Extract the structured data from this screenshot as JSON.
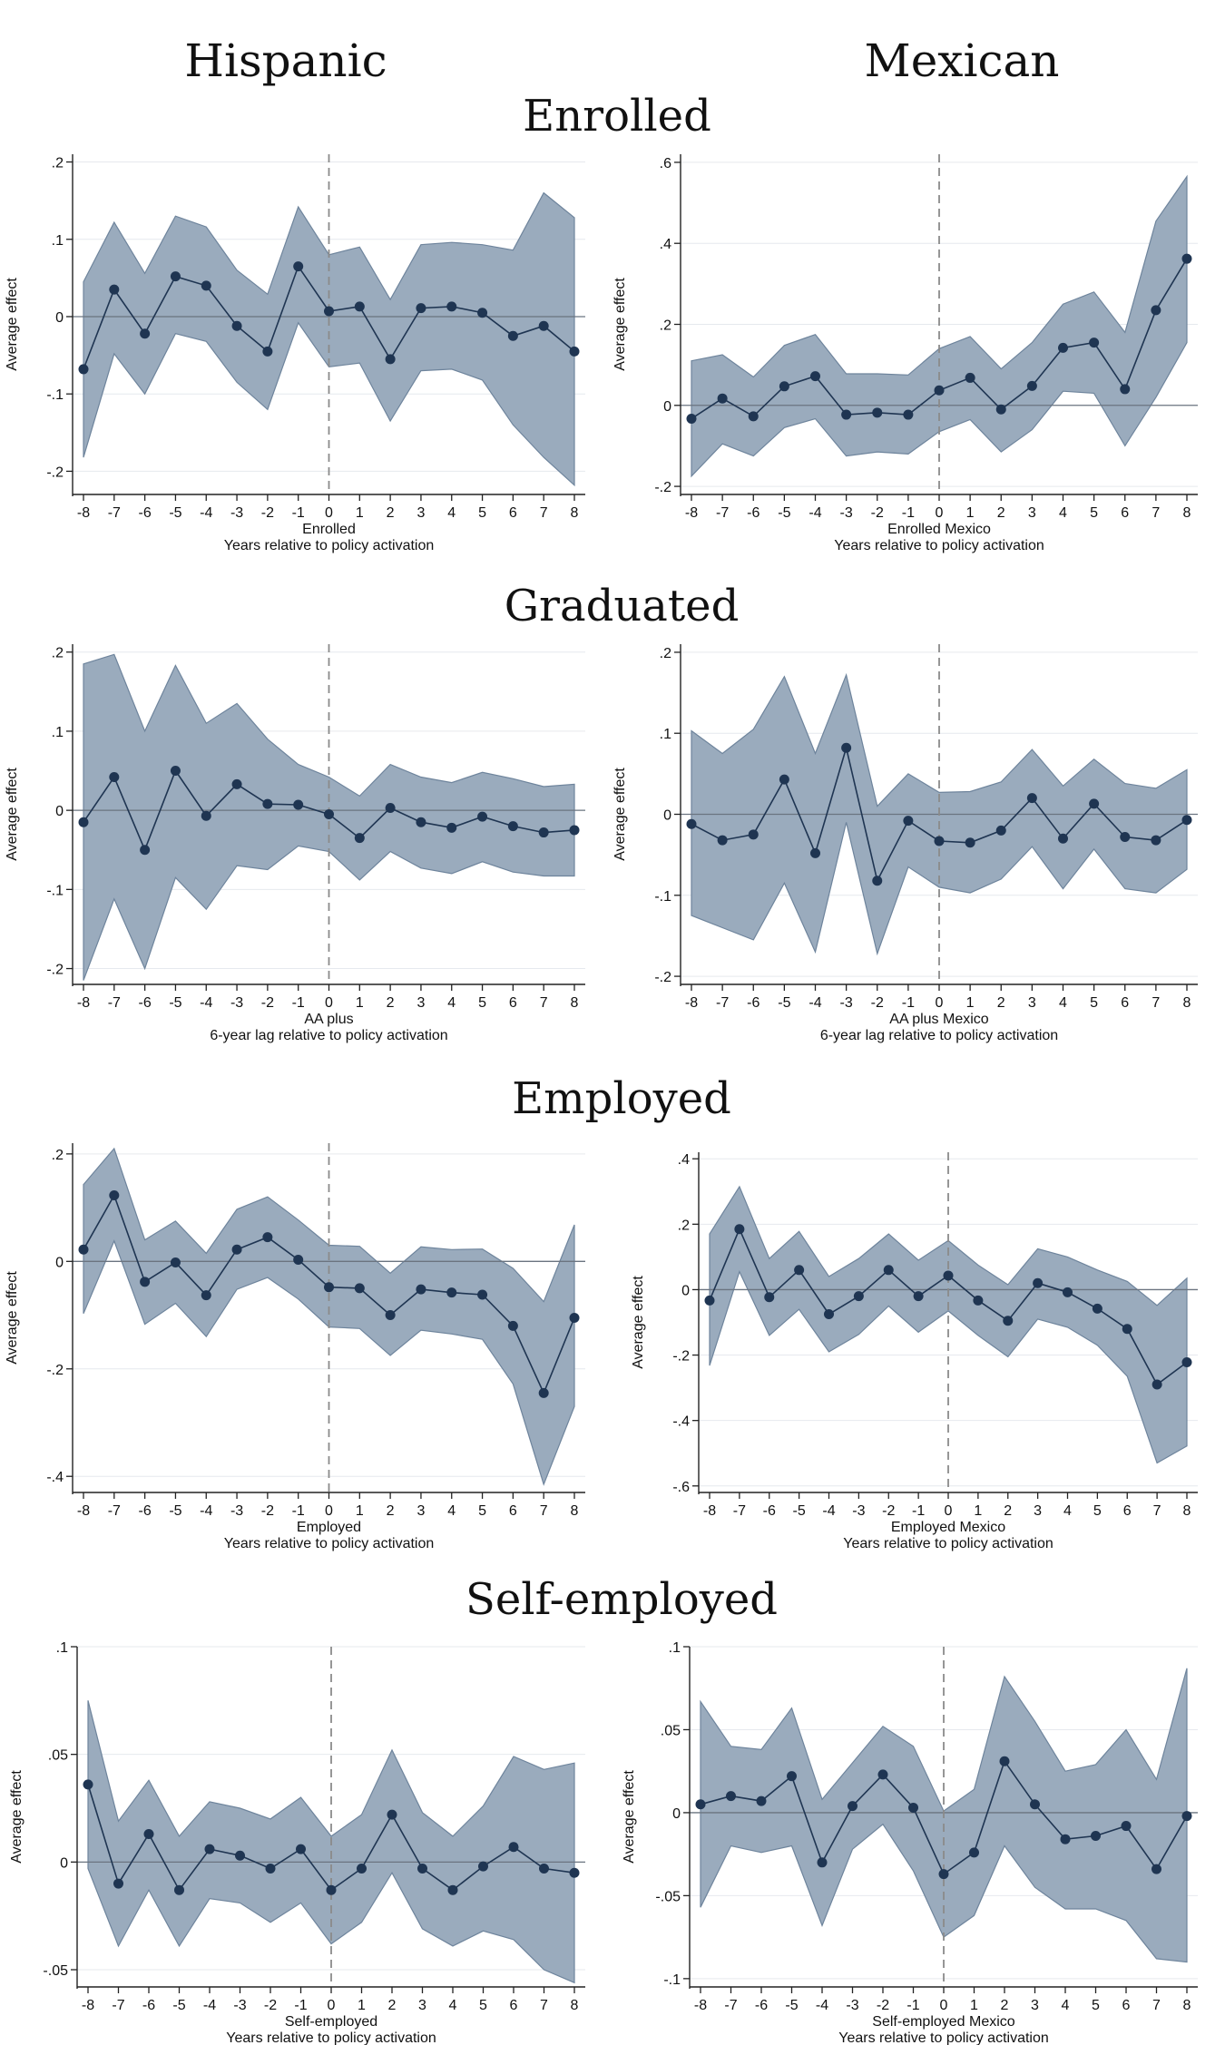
{
  "column_titles": [
    "Hispanic",
    "Mexican"
  ],
  "row_titles": [
    "Enrolled",
    "Graduated",
    "Employed",
    "Self-employed"
  ],
  "colors": {
    "band": "#9aabbd",
    "band_edge": "#6e849c",
    "line": "#1f3552",
    "marker": "#1f3552",
    "zero_line": "#6b7480",
    "vline": "#8a8a8a",
    "axis": "#222222"
  },
  "chart_data": [
    {
      "id": "enrolled-hispanic",
      "type": "line",
      "title": "",
      "xlabel": "Enrolled",
      "xlabel2": "Years relative to policy activation",
      "ylabel": "Average effect",
      "x": [
        -8,
        -7,
        -6,
        -5,
        -4,
        -3,
        -2,
        -1,
        0,
        1,
        2,
        3,
        4,
        5,
        6,
        7,
        8
      ],
      "xtick_labels": [
        "-8",
        "-7",
        "-6",
        "-5",
        "-4",
        "-3",
        "-2",
        "-1",
        "0",
        "1",
        "2",
        "3",
        "4",
        "5",
        "6",
        "7",
        "8"
      ],
      "ylim": [
        -0.23,
        0.21
      ],
      "yticks": [
        -0.2,
        -0.1,
        0,
        0.1,
        0.2
      ],
      "ytick_labels": [
        "-.2",
        "-.1",
        "0",
        ".1",
        ".2"
      ],
      "series": [
        {
          "name": "Average effect",
          "values": [
            -0.068,
            0.035,
            -0.022,
            0.052,
            0.04,
            -0.012,
            -0.045,
            0.065,
            0.007,
            0.013,
            -0.055,
            0.011,
            0.013,
            0.005,
            -0.025,
            -0.012,
            -0.045
          ],
          "lower": [
            -0.182,
            -0.048,
            -0.1,
            -0.022,
            -0.032,
            -0.085,
            -0.12,
            -0.008,
            -0.065,
            -0.06,
            -0.135,
            -0.07,
            -0.068,
            -0.082,
            -0.14,
            -0.182,
            -0.218
          ],
          "upper": [
            0.045,
            0.122,
            0.056,
            0.13,
            0.116,
            0.06,
            0.029,
            0.142,
            0.08,
            0.09,
            0.022,
            0.093,
            0.096,
            0.093,
            0.086,
            0.16,
            0.128
          ]
        }
      ]
    },
    {
      "id": "enrolled-mexican",
      "type": "line",
      "title": "",
      "xlabel": "Enrolled Mexico",
      "xlabel2": "Years relative to policy activation",
      "ylabel": "Average effect",
      "x": [
        -8,
        -7,
        -6,
        -5,
        -4,
        -3,
        -2,
        -1,
        0,
        1,
        2,
        3,
        4,
        5,
        6,
        7,
        8
      ],
      "xtick_labels": [
        "-8",
        "-7",
        "-6",
        "-5",
        "-4",
        "-3",
        "-2",
        "-1",
        "0",
        "1",
        "2",
        "3",
        "4",
        "5",
        "6",
        "7",
        "8"
      ],
      "ylim": [
        -0.22,
        0.62
      ],
      "yticks": [
        -0.2,
        0,
        0.2,
        0.4,
        0.6
      ],
      "ytick_labels": [
        "-.2",
        "0",
        ".2",
        ".4",
        ".6"
      ],
      "series": [
        {
          "name": "Average effect",
          "values": [
            -0.033,
            0.017,
            -0.027,
            0.047,
            0.072,
            -0.023,
            -0.018,
            -0.023,
            0.037,
            0.068,
            -0.01,
            0.048,
            0.142,
            0.155,
            0.04,
            0.235,
            0.362
          ],
          "lower": [
            -0.175,
            -0.095,
            -0.125,
            -0.055,
            -0.033,
            -0.125,
            -0.115,
            -0.12,
            -0.065,
            -0.035,
            -0.115,
            -0.06,
            0.035,
            0.03,
            -0.1,
            0.02,
            0.155
          ],
          "upper": [
            0.11,
            0.125,
            0.07,
            0.148,
            0.175,
            0.078,
            0.078,
            0.075,
            0.14,
            0.17,
            0.09,
            0.155,
            0.25,
            0.28,
            0.18,
            0.455,
            0.565
          ]
        }
      ]
    },
    {
      "id": "graduated-hispanic",
      "type": "line",
      "title": "",
      "xlabel": "AA plus",
      "xlabel2": "6-year lag relative to policy activation",
      "ylabel": "Average effect",
      "x": [
        -8,
        -7,
        -6,
        -5,
        -4,
        -3,
        -2,
        -1,
        0,
        1,
        2,
        3,
        4,
        5,
        6,
        7,
        8
      ],
      "xtick_labels": [
        "-8",
        "-7",
        "-6",
        "-5",
        "-4",
        "-3",
        "-2",
        "-1",
        "0",
        "1",
        "2",
        "3",
        "4",
        "5",
        "6",
        "7",
        "8"
      ],
      "ylim": [
        -0.22,
        0.21
      ],
      "yticks": [
        -0.2,
        -0.1,
        0,
        0.1,
        0.2
      ],
      "ytick_labels": [
        "-.2",
        "-.1",
        "0",
        ".1",
        ".2"
      ],
      "series": [
        {
          "name": "Average effect",
          "values": [
            -0.015,
            0.042,
            -0.05,
            0.05,
            -0.007,
            0.033,
            0.008,
            0.007,
            -0.005,
            -0.035,
            0.003,
            -0.015,
            -0.022,
            -0.008,
            -0.02,
            -0.028,
            -0.025
          ],
          "lower": [
            -0.215,
            -0.112,
            -0.2,
            -0.085,
            -0.125,
            -0.07,
            -0.075,
            -0.045,
            -0.052,
            -0.088,
            -0.052,
            -0.073,
            -0.08,
            -0.065,
            -0.078,
            -0.083,
            -0.083
          ],
          "upper": [
            0.185,
            0.197,
            0.1,
            0.183,
            0.11,
            0.135,
            0.09,
            0.058,
            0.042,
            0.018,
            0.058,
            0.042,
            0.035,
            0.048,
            0.04,
            0.03,
            0.033
          ]
        }
      ]
    },
    {
      "id": "graduated-mexican",
      "type": "line",
      "title": "",
      "xlabel": "AA plus Mexico",
      "xlabel2": "6-year lag relative to policy activation",
      "ylabel": "Average effect",
      "x": [
        -8,
        -7,
        -6,
        -5,
        -4,
        -3,
        -2,
        -1,
        0,
        1,
        2,
        3,
        4,
        5,
        6,
        7,
        8
      ],
      "xtick_labels": [
        "-8",
        "-7",
        "-6",
        "-5",
        "-4",
        "-3",
        "-2",
        "-1",
        "0",
        "1",
        "2",
        "3",
        "4",
        "5",
        "6",
        "7",
        "8"
      ],
      "ylim": [
        -0.21,
        0.21
      ],
      "yticks": [
        -0.2,
        -0.1,
        0,
        0.1,
        0.2
      ],
      "ytick_labels": [
        "-.2",
        "-.1",
        "0",
        ".1",
        ".2"
      ],
      "series": [
        {
          "name": "Average effect",
          "values": [
            -0.012,
            -0.032,
            -0.025,
            0.043,
            -0.048,
            0.082,
            -0.082,
            -0.008,
            -0.033,
            -0.035,
            -0.02,
            0.02,
            -0.03,
            0.013,
            -0.028,
            -0.032,
            -0.007
          ],
          "lower": [
            -0.125,
            -0.14,
            -0.155,
            -0.085,
            -0.17,
            -0.01,
            -0.172,
            -0.065,
            -0.09,
            -0.097,
            -0.08,
            -0.04,
            -0.092,
            -0.043,
            -0.092,
            -0.097,
            -0.068
          ],
          "upper": [
            0.103,
            0.075,
            0.105,
            0.17,
            0.075,
            0.172,
            0.01,
            0.05,
            0.027,
            0.028,
            0.04,
            0.08,
            0.035,
            0.068,
            0.038,
            0.032,
            0.055
          ]
        }
      ]
    },
    {
      "id": "employed-hispanic",
      "type": "line",
      "title": "",
      "xlabel": "Employed",
      "xlabel2": "Years relative to policy activation",
      "ylabel": "Average effect",
      "x": [
        -8,
        -7,
        -6,
        -5,
        -4,
        -3,
        -2,
        -1,
        0,
        1,
        2,
        3,
        4,
        5,
        6,
        7,
        8
      ],
      "xtick_labels": [
        "-8",
        "-7",
        "-6",
        "-5",
        "-4",
        "-3",
        "-2",
        "-1",
        "0",
        "1",
        "2",
        "3",
        "4",
        "5",
        "6",
        "7",
        "8"
      ],
      "ylim": [
        -0.43,
        0.22
      ],
      "yticks": [
        -0.4,
        -0.2,
        0,
        0.2
      ],
      "ytick_labels": [
        "-.4",
        "-.2",
        "0",
        ".2"
      ],
      "series": [
        {
          "name": "Average effect",
          "values": [
            0.022,
            0.123,
            -0.038,
            -0.002,
            -0.063,
            0.022,
            0.045,
            0.003,
            -0.048,
            -0.05,
            -0.1,
            -0.052,
            -0.058,
            -0.062,
            -0.12,
            -0.245,
            -0.105
          ],
          "lower": [
            -0.097,
            0.038,
            -0.117,
            -0.078,
            -0.14,
            -0.052,
            -0.03,
            -0.07,
            -0.122,
            -0.125,
            -0.175,
            -0.128,
            -0.135,
            -0.145,
            -0.228,
            -0.415,
            -0.27
          ],
          "upper": [
            0.143,
            0.21,
            0.04,
            0.075,
            0.015,
            0.097,
            0.12,
            0.077,
            0.03,
            0.028,
            -0.022,
            0.027,
            0.022,
            0.023,
            -0.013,
            -0.075,
            0.068
          ]
        }
      ]
    },
    {
      "id": "employed-mexican",
      "type": "line",
      "title": "",
      "xlabel": "Employed Mexico",
      "xlabel2": "Years relative to policy activation",
      "ylabel": "Average effect",
      "x": [
        -8,
        -7,
        -6,
        -5,
        -4,
        -3,
        -2,
        -1,
        0,
        1,
        2,
        3,
        4,
        5,
        6,
        7,
        8
      ],
      "xtick_labels": [
        "-8",
        "-7",
        "-6",
        "-5",
        "-4",
        "-3",
        "-2",
        "-1",
        "0",
        "1",
        "2",
        "3",
        "4",
        "5",
        "6",
        "7",
        "8"
      ],
      "ylim": [
        -0.62,
        0.42
      ],
      "yticks": [
        -0.6,
        -0.4,
        -0.2,
        0,
        0.2,
        0.4
      ],
      "ytick_labels": [
        "-.6",
        "-.4",
        "-.2",
        "0",
        ".2",
        ".4"
      ],
      "series": [
        {
          "name": "Average effect",
          "values": [
            -0.033,
            0.185,
            -0.023,
            0.06,
            -0.075,
            -0.02,
            0.06,
            -0.02,
            0.043,
            -0.033,
            -0.095,
            0.02,
            -0.008,
            -0.058,
            -0.12,
            -0.29,
            -0.222
          ],
          "lower": [
            -0.232,
            0.055,
            -0.14,
            -0.06,
            -0.19,
            -0.137,
            -0.05,
            -0.13,
            -0.065,
            -0.14,
            -0.205,
            -0.09,
            -0.115,
            -0.17,
            -0.265,
            -0.53,
            -0.478
          ],
          "upper": [
            0.17,
            0.315,
            0.095,
            0.178,
            0.04,
            0.095,
            0.17,
            0.09,
            0.15,
            0.075,
            0.015,
            0.125,
            0.1,
            0.06,
            0.025,
            -0.048,
            0.035
          ]
        }
      ]
    },
    {
      "id": "selfemployed-hispanic",
      "type": "line",
      "title": "",
      "xlabel": "Self-employed",
      "xlabel2": "Years relative to policy activation",
      "ylabel": "Average effect",
      "x": [
        -8,
        -7,
        -6,
        -5,
        -4,
        -3,
        -2,
        -1,
        0,
        1,
        2,
        3,
        4,
        5,
        6,
        7,
        8
      ],
      "xtick_labels": [
        "-8",
        "-7",
        "-6",
        "-5",
        "-4",
        "-3",
        "-2",
        "-1",
        "0",
        "1",
        "2",
        "3",
        "4",
        "5",
        "6",
        "7",
        "8"
      ],
      "ylim": [
        -0.058,
        0.1
      ],
      "yticks": [
        -0.05,
        0,
        0.05,
        0.1
      ],
      "ytick_labels": [
        "-.05",
        "0",
        ".05",
        ".1"
      ],
      "series": [
        {
          "name": "Average effect",
          "values": [
            0.036,
            -0.01,
            0.013,
            -0.013,
            0.006,
            0.003,
            -0.003,
            0.006,
            -0.013,
            -0.003,
            0.022,
            -0.003,
            -0.013,
            -0.002,
            0.007,
            -0.003,
            -0.005
          ],
          "lower": [
            -0.003,
            -0.039,
            -0.013,
            -0.039,
            -0.017,
            -0.019,
            -0.028,
            -0.019,
            -0.038,
            -0.028,
            -0.005,
            -0.031,
            -0.039,
            -0.032,
            -0.036,
            -0.05,
            -0.056
          ],
          "upper": [
            0.075,
            0.019,
            0.038,
            0.012,
            0.028,
            0.025,
            0.02,
            0.03,
            0.012,
            0.022,
            0.052,
            0.023,
            0.012,
            0.026,
            0.049,
            0.043,
            0.046
          ]
        }
      ]
    },
    {
      "id": "selfemployed-mexican",
      "type": "line",
      "title": "",
      "xlabel": "Self-employed Mexico",
      "xlabel2": "Years relative to policy activation",
      "ylabel": "Average effect",
      "x": [
        -8,
        -7,
        -6,
        -5,
        -4,
        -3,
        -2,
        -1,
        0,
        1,
        2,
        3,
        4,
        5,
        6,
        7,
        8
      ],
      "xtick_labels": [
        "-8",
        "-7",
        "-6",
        "-5",
        "-4",
        "-3",
        "-2",
        "-1",
        "0",
        "1",
        "2",
        "3",
        "4",
        "5",
        "6",
        "7",
        "8"
      ],
      "ylim": [
        -0.105,
        0.1
      ],
      "yticks": [
        -0.1,
        -0.05,
        0,
        0.05,
        0.1
      ],
      "ytick_labels": [
        "-.1",
        "-.05",
        "0",
        ".05",
        ".1"
      ],
      "series": [
        {
          "name": "Average effect",
          "values": [
            0.005,
            0.01,
            0.007,
            0.022,
            -0.03,
            0.004,
            0.023,
            0.003,
            -0.037,
            -0.024,
            0.031,
            0.005,
            -0.016,
            -0.014,
            -0.008,
            -0.034,
            -0.002
          ],
          "lower": [
            -0.057,
            -0.02,
            -0.024,
            -0.02,
            -0.068,
            -0.022,
            -0.007,
            -0.035,
            -0.075,
            -0.062,
            -0.02,
            -0.045,
            -0.058,
            -0.058,
            -0.065,
            -0.088,
            -0.09
          ],
          "upper": [
            0.067,
            0.04,
            0.038,
            0.063,
            0.008,
            0.03,
            0.052,
            0.04,
            0.001,
            0.014,
            0.082,
            0.055,
            0.025,
            0.029,
            0.05,
            0.02,
            0.087
          ]
        }
      ]
    }
  ]
}
